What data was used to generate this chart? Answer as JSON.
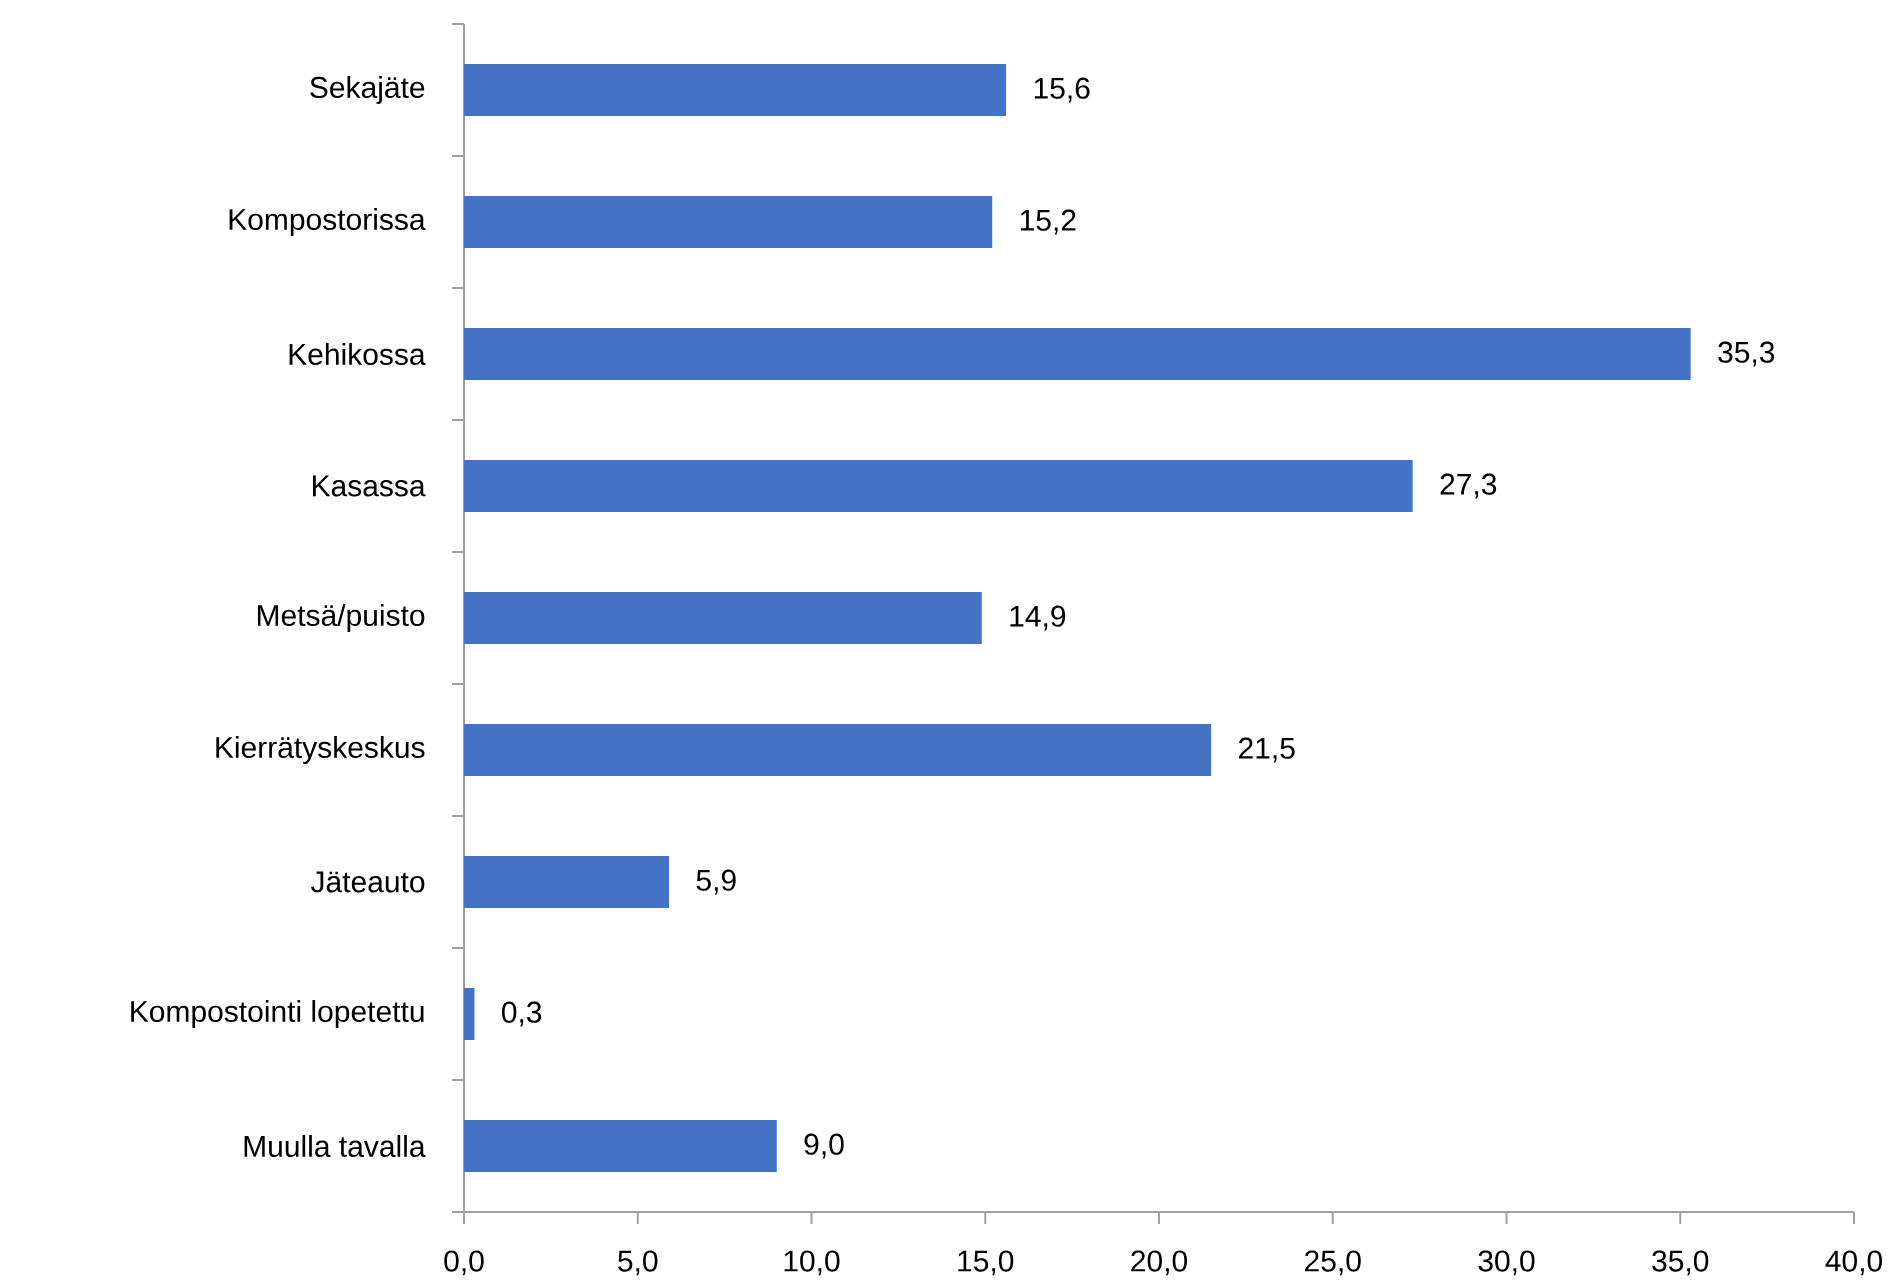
{
  "chart_data": {
    "type": "bar",
    "orientation": "horizontal",
    "categories": [
      "Sekajäte",
      "Kompostorissa",
      "Kehikossa",
      "Kasassa",
      "Metsä/puisto",
      "Kierrätyskeskus",
      "Jäteauto",
      "Kompostointi lopetettu",
      "Muulla tavalla"
    ],
    "values": [
      15.6,
      15.2,
      35.3,
      27.3,
      14.9,
      21.5,
      5.9,
      0.3,
      9.0
    ],
    "value_labels": [
      "15,6",
      "15,2",
      "35,3",
      "27,3",
      "14,9",
      "21,5",
      "5,9",
      "0,3",
      "9,0"
    ],
    "color": "#4472c4",
    "xlim": [
      0,
      40
    ],
    "xticks": [
      {
        "value": 0,
        "label": "0,0"
      },
      {
        "value": 5,
        "label": "5,0"
      },
      {
        "value": 10,
        "label": "10,0"
      },
      {
        "value": 15,
        "label": "15,0"
      },
      {
        "value": 20,
        "label": "20,0"
      },
      {
        "value": 25,
        "label": "25,0"
      },
      {
        "value": 30,
        "label": "30,0"
      },
      {
        "value": 35,
        "label": "35,0"
      },
      {
        "value": 40,
        "label": "40,0"
      }
    ]
  }
}
